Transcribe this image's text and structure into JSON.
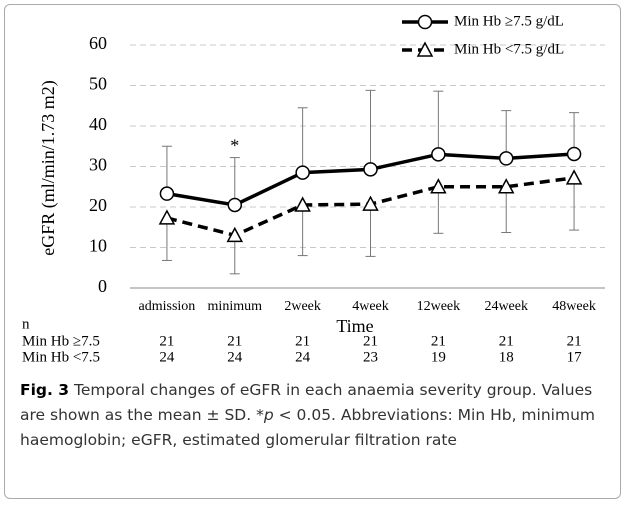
{
  "chart_data": {
    "type": "line",
    "y_label": "eGFR (ml/min/1.73 m2)",
    "x_label": "Time",
    "categories": [
      "admission",
      "minimum",
      "2week",
      "4week",
      "12week",
      "24week",
      "48week"
    ],
    "series": [
      {
        "name": "Min Hb ≥7.5 g/dL",
        "color": "#000000",
        "marker": "circle",
        "dashed": false,
        "error_direction": "up",
        "values": [
          23.3,
          20.5,
          28.5,
          29.3,
          33,
          32,
          33.1
        ],
        "errors": [
          11.7,
          11.7,
          16,
          19.5,
          15.6,
          11.8,
          10.2
        ]
      },
      {
        "name": "Min Hb <7.5 g/dL",
        "color": "#000000",
        "marker": "triangle",
        "dashed": true,
        "error_direction": "down",
        "values": [
          17.3,
          13,
          20.5,
          20.7,
          25,
          25,
          27.2
        ],
        "errors": [
          10.5,
          9.5,
          12.5,
          12.9,
          11.5,
          11.3,
          12.9
        ]
      }
    ],
    "annotation": "*",
    "ylim": [
      0,
      60
    ],
    "yticks": [
      0,
      10,
      20,
      30,
      40,
      50,
      60
    ],
    "grid": true,
    "legend": "top-right",
    "n_table": {
      "label": "n",
      "rows": [
        {
          "name": "Min Hb ≥7.5",
          "values": [
            21,
            21,
            21,
            21,
            21,
            21,
            21
          ]
        },
        {
          "name": "Min Hb <7.5",
          "values": [
            24,
            24,
            24,
            23,
            19,
            18,
            17
          ]
        }
      ]
    }
  },
  "caption": {
    "label": "Fig. 3",
    "text1": "Temporal changes of eGFR in each anaemia severity group. Values are shown as the mean ± SD. *",
    "italic": "p",
    "text2": " < 0.05. Abbreviations: Min Hb, minimum haemoglobin; eGFR, estimated glomerular filtration rate"
  }
}
